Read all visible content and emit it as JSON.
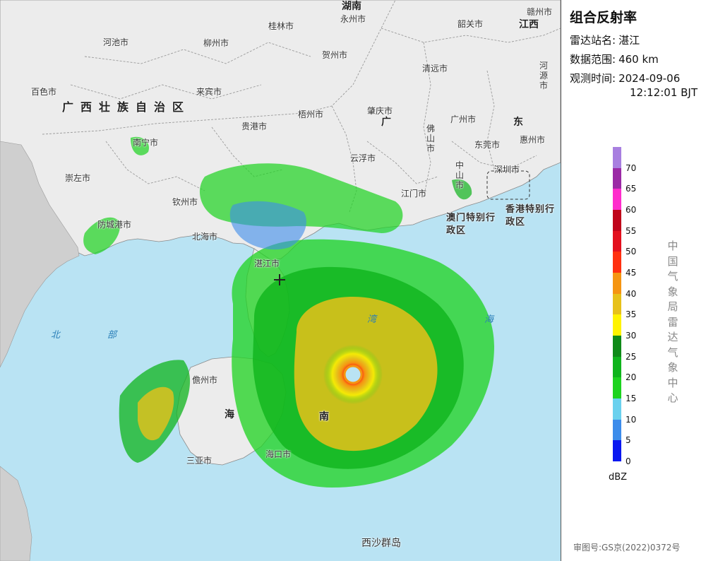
{
  "title": "组合反射率",
  "info": {
    "station_label": "雷达站名:",
    "station_value": "湛江",
    "range_label": "数据范围:",
    "range_value": "460 km",
    "time_label": "观测时间:",
    "time_date": "2024-09-06",
    "time_clock": "12:12:01 BJT"
  },
  "legend": {
    "unit": "dBZ",
    "ticks": [
      "70",
      "65",
      "60",
      "55",
      "50",
      "45",
      "40",
      "35",
      "30",
      "25",
      "20",
      "15",
      "10",
      "5",
      "0"
    ],
    "colors": [
      "#a87fe0",
      "#9b2aa6",
      "#ff2ccc",
      "#c0041a",
      "#e3101e",
      "#ff3010",
      "#f59512",
      "#e7c11a",
      "#fff300",
      "#0f8a18",
      "#0fb41c",
      "#1dd31f",
      "#6ad1ee",
      "#3c8ceb",
      "#0a18f0"
    ]
  },
  "agency": "中国气象局雷达气象中心",
  "approval": "审图号:GS京(2022)0372号",
  "map": {
    "region_guangxi": "广西壮族自治区",
    "province_hunan": "湖南",
    "province_jiangxi": "江西",
    "province_guangdong_1": "广",
    "province_guangdong_2": "东",
    "macau_sar": "澳门特别行政区",
    "hongkong_sar": "香港特别行政区",
    "hainan_1": "海",
    "hainan_2": "南",
    "sea_1": "北",
    "sea_2": "部",
    "sea_3": "湾",
    "sea_4": "海",
    "cities": [
      "永州市",
      "桂林市",
      "韶关市",
      "赣州市",
      "河池市",
      "柳州市",
      "贺州市",
      "清远市",
      "河源市",
      "百色市",
      "来宾市",
      "梧州市",
      "肇庆市",
      "广州市",
      "惠州市",
      "贵港市",
      "佛山市",
      "南宁市",
      "云浮市",
      "东莞市",
      "崇左市",
      "深圳市",
      "中山市",
      "钦州市",
      "江门市",
      "防城港市",
      "北海市",
      "湛江市",
      "儋州市",
      "海口市",
      "三亚市",
      "西沙群岛"
    ]
  },
  "colors": {
    "ocean": "#b9e3f3",
    "land": "#ececec",
    "panel_border": "#555555"
  }
}
